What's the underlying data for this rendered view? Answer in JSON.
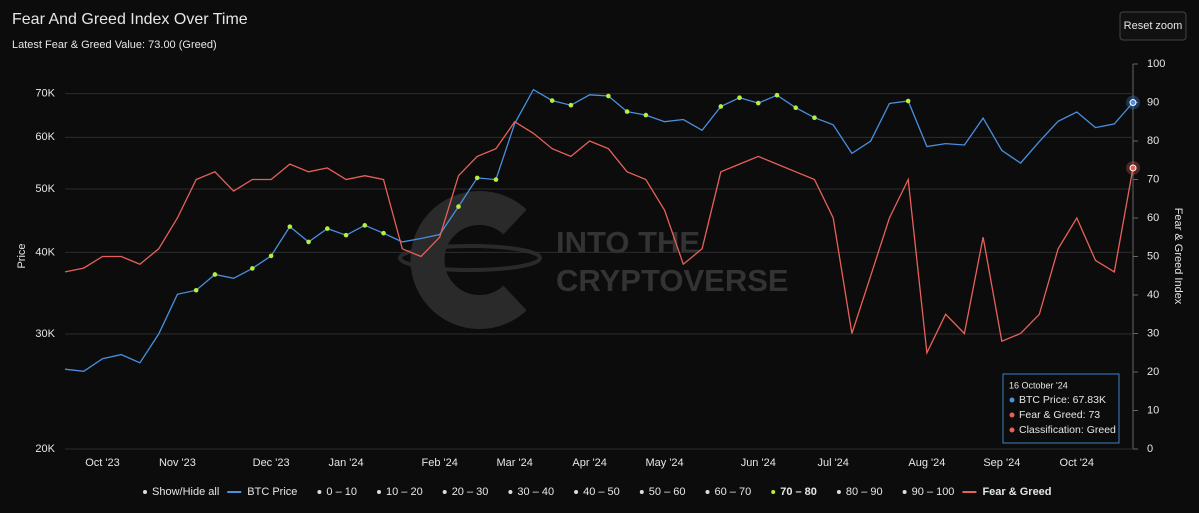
{
  "chart_data": {
    "type": "line",
    "title": "Fear And Greed Index Over Time",
    "subtitle": "Latest Fear & Greed Value: 73.00 (Greed)",
    "button": "Reset zoom",
    "watermark": [
      "INTO THE",
      "CRYPTOVERSE"
    ],
    "y_label": "Price",
    "y2_label": "Fear & Greed Index",
    "log_y": true,
    "grid": true,
    "categories": [
      null,
      null,
      "Oct '23",
      null,
      null,
      null,
      "Nov '23",
      null,
      null,
      null,
      null,
      "Dec '23",
      null,
      null,
      null,
      "Jan '24",
      null,
      null,
      null,
      null,
      "Feb '24",
      null,
      null,
      null,
      "Mar '24",
      null,
      null,
      null,
      "Apr '24",
      null,
      null,
      null,
      "May '24",
      null,
      null,
      null,
      null,
      "Jun '24",
      null,
      null,
      null,
      "Jul '24",
      null,
      null,
      null,
      null,
      "Aug '24",
      null,
      null,
      null,
      "Sep '24",
      null,
      null,
      null,
      "Oct '24",
      null,
      null,
      null
    ],
    "ylim": [
      20000,
      77700
    ],
    "yticks": [
      {
        "value": 20000,
        "label": "20K"
      },
      {
        "value": 30000,
        "label": "30K"
      },
      {
        "value": 40000,
        "label": "40K"
      },
      {
        "value": 50000,
        "label": "50K"
      },
      {
        "value": 60000,
        "label": "60K"
      },
      {
        "value": 70000,
        "label": "70K"
      }
    ],
    "y2lim": [
      0,
      100
    ],
    "y2ticks": [
      0,
      10,
      20,
      30,
      40,
      50,
      60,
      70,
      80,
      90,
      100
    ],
    "series": [
      {
        "name": "BTC Price",
        "color": "#4a8fe0",
        "axis": "y",
        "values": [
          26500,
          26300,
          27500,
          27900,
          27100,
          30000,
          34500,
          35000,
          37000,
          36500,
          37800,
          39500,
          43800,
          41500,
          43500,
          42500,
          44000,
          42800,
          41500,
          42000,
          42600,
          47000,
          52000,
          51700,
          63000,
          71000,
          68300,
          67200,
          69700,
          69400,
          65700,
          64900,
          63400,
          63900,
          61500,
          66900,
          69000,
          67700,
          69600,
          66600,
          64300,
          62700,
          56700,
          59200,
          67600,
          68200,
          58100,
          58700,
          58400,
          64200,
          57300,
          54800,
          59100,
          63500,
          65600,
          62100,
          62900,
          67830
        ]
      },
      {
        "name": "Fear & Greed",
        "color": "#e8605a",
        "axis": "y2",
        "values": [
          46,
          47,
          50,
          50,
          48,
          52,
          60,
          70,
          72,
          67,
          70,
          70,
          74,
          72,
          73,
          70,
          71,
          70,
          52,
          50,
          55,
          71,
          76,
          78,
          85,
          82,
          78,
          76,
          80,
          78,
          72,
          70,
          62,
          48,
          52,
          72,
          74,
          76,
          74,
          72,
          70,
          60,
          30,
          45,
          60,
          70,
          25,
          35,
          30,
          55,
          28,
          30,
          35,
          52,
          60,
          49,
          46,
          73
        ]
      }
    ],
    "ranges": [
      {
        "label": "0 – 10",
        "range": [
          0,
          10
        ],
        "visible": false
      },
      {
        "label": "10 – 20",
        "range": [
          10,
          20
        ],
        "visible": false
      },
      {
        "label": "20 – 30",
        "range": [
          20,
          30
        ],
        "visible": false
      },
      {
        "label": "30 – 40",
        "range": [
          30,
          40
        ],
        "visible": false
      },
      {
        "label": "40 – 50",
        "range": [
          40,
          50
        ],
        "visible": false
      },
      {
        "label": "50 – 60",
        "range": [
          50,
          60
        ],
        "visible": false
      },
      {
        "label": "60 – 70",
        "range": [
          60,
          70
        ],
        "visible": false
      },
      {
        "label": "70 – 80",
        "range": [
          70,
          80
        ],
        "visible": true,
        "color": "#b6f03a"
      },
      {
        "label": "80 – 90",
        "range": [
          80,
          90
        ],
        "visible": false
      },
      {
        "label": "90 – 100",
        "range": [
          90,
          100
        ],
        "visible": false
      }
    ],
    "show_all": "Show/Hide all",
    "tooltip": {
      "date": "16 October '24",
      "lines": [
        "BTC Price: 67.83K",
        "Fear & Greed: 73",
        "Classification: Greed"
      ]
    }
  }
}
